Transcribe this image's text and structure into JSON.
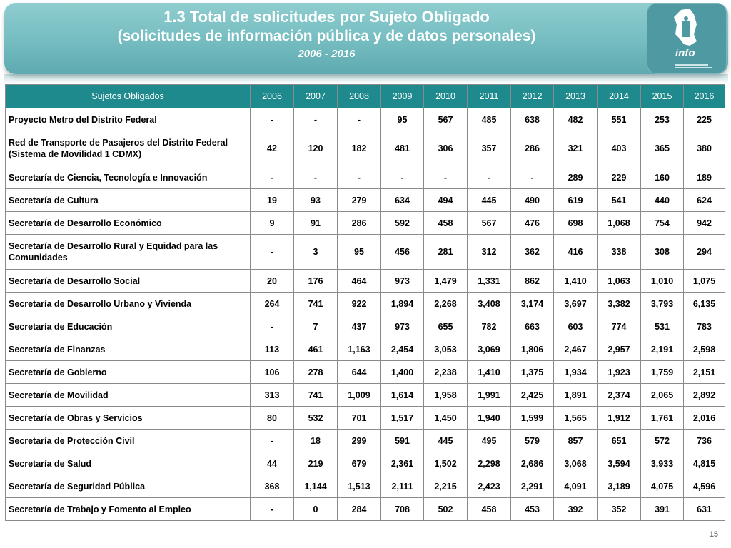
{
  "header": {
    "title_line1": "1.3 Total de solicitudes por Sujeto Obligado",
    "title_line2": "(solicitudes de información pública y de datos personales)",
    "title_line3": "2006 - 2016",
    "logo_text": "info"
  },
  "table": {
    "columns": [
      "Sujetos Obligados",
      "2006",
      "2007",
      "2008",
      "2009",
      "2010",
      "2011",
      "2012",
      "2013",
      "2014",
      "2015",
      "2016"
    ],
    "rows": [
      {
        "name": "Proyecto Metro del Distrito Federal",
        "values": [
          "-",
          "-",
          "-",
          "95",
          "567",
          "485",
          "638",
          "482",
          "551",
          "253",
          "225"
        ]
      },
      {
        "name": "Red de Transporte de Pasajeros del Distrito Federal (Sistema de Movilidad 1 CDMX)",
        "values": [
          "42",
          "120",
          "182",
          "481",
          "306",
          "357",
          "286",
          "321",
          "403",
          "365",
          "380"
        ]
      },
      {
        "name": "Secretaría de Ciencia, Tecnología e Innovación",
        "values": [
          "-",
          "-",
          "-",
          "-",
          "-",
          "-",
          "-",
          "289",
          "229",
          "160",
          "189"
        ]
      },
      {
        "name": "Secretaría de Cultura",
        "values": [
          "19",
          "93",
          "279",
          "634",
          "494",
          "445",
          "490",
          "619",
          "541",
          "440",
          "624"
        ]
      },
      {
        "name": "Secretaría de Desarrollo Económico",
        "values": [
          "9",
          "91",
          "286",
          "592",
          "458",
          "567",
          "476",
          "698",
          "1,068",
          "754",
          "942"
        ]
      },
      {
        "name": "Secretaría de Desarrollo Rural y Equidad para las Comunidades",
        "values": [
          "-",
          "3",
          "95",
          "456",
          "281",
          "312",
          "362",
          "416",
          "338",
          "308",
          "294"
        ]
      },
      {
        "name": "Secretaría de Desarrollo Social",
        "values": [
          "20",
          "176",
          "464",
          "973",
          "1,479",
          "1,331",
          "862",
          "1,410",
          "1,063",
          "1,010",
          "1,075"
        ]
      },
      {
        "name": "Secretaría de Desarrollo Urbano y Vivienda",
        "values": [
          "264",
          "741",
          "922",
          "1,894",
          "2,268",
          "3,408",
          "3,174",
          "3,697",
          "3,382",
          "3,793",
          "6,135"
        ]
      },
      {
        "name": "Secretaría de Educación",
        "values": [
          "-",
          "7",
          "437",
          "973",
          "655",
          "782",
          "663",
          "603",
          "774",
          "531",
          "783"
        ]
      },
      {
        "name": "Secretaría de Finanzas",
        "values": [
          "113",
          "461",
          "1,163",
          "2,454",
          "3,053",
          "3,069",
          "1,806",
          "2,467",
          "2,957",
          "2,191",
          "2,598"
        ]
      },
      {
        "name": "Secretaría de Gobierno",
        "values": [
          "106",
          "278",
          "644",
          "1,400",
          "2,238",
          "1,410",
          "1,375",
          "1,934",
          "1,923",
          "1,759",
          "2,151"
        ]
      },
      {
        "name": "Secretaría de Movilidad",
        "values": [
          "313",
          "741",
          "1,009",
          "1,614",
          "1,958",
          "1,991",
          "2,425",
          "1,891",
          "2,374",
          "2,065",
          "2,892"
        ]
      },
      {
        "name": "Secretaría de Obras y Servicios",
        "values": [
          "80",
          "532",
          "701",
          "1,517",
          "1,450",
          "1,940",
          "1,599",
          "1,565",
          "1,912",
          "1,761",
          "2,016"
        ]
      },
      {
        "name": "Secretaría de Protección Civil",
        "values": [
          "-",
          "18",
          "299",
          "591",
          "445",
          "495",
          "579",
          "857",
          "651",
          "572",
          "736"
        ]
      },
      {
        "name": "Secretaría de Salud",
        "values": [
          "44",
          "219",
          "679",
          "2,361",
          "1,502",
          "2,298",
          "2,686",
          "3,068",
          "3,594",
          "3,933",
          "4,815"
        ]
      },
      {
        "name": "Secretaría de Seguridad Pública",
        "values": [
          "368",
          "1,144",
          "1,513",
          "2,111",
          "2,215",
          "2,423",
          "2,291",
          "4,091",
          "3,189",
          "4,075",
          "4,596"
        ]
      },
      {
        "name": "Secretaría de Trabajo y Fomento al Empleo",
        "values": [
          "-",
          "0",
          "284",
          "708",
          "502",
          "458",
          "453",
          "392",
          "352",
          "391",
          "631"
        ]
      }
    ]
  },
  "footer": {
    "page_number": "15"
  },
  "colors": {
    "banner": "#74bcc0",
    "header_row": "#1f8a8d",
    "logo_bg": "#4f9aa2"
  },
  "icons": {
    "logo": "infodf-logo-icon"
  }
}
